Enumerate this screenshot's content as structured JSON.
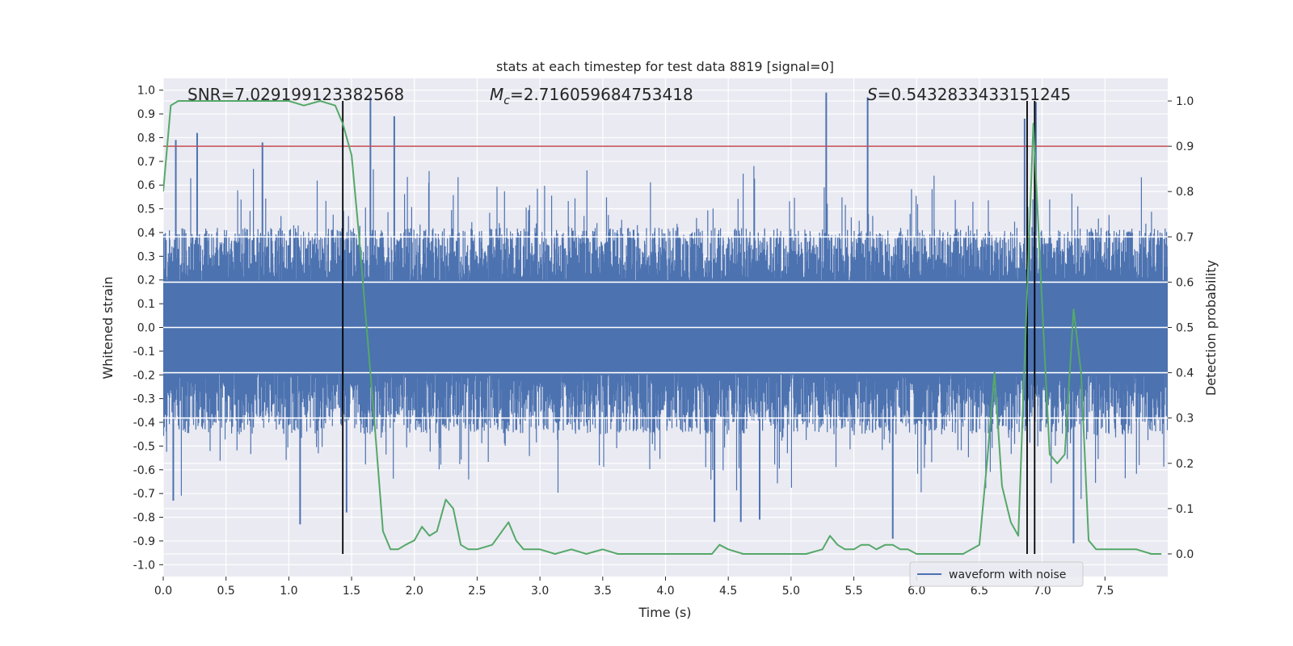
{
  "chart_data": {
    "type": "line",
    "title": "stats at each timestep for test data 8819 [signal=0]",
    "xlabel": "Time (s)",
    "ylabel_left": "Whitened strain",
    "ylabel_right": "Detection probability",
    "xlim": [
      0.0,
      8.0
    ],
    "ylim_left": [
      -1.05,
      1.05
    ],
    "ylim_right": [
      -0.05,
      1.05
    ],
    "grid": true,
    "legend_position": "lower right",
    "x_tick_labels": [
      "0.0",
      "0.5",
      "1.0",
      "1.5",
      "2.0",
      "2.5",
      "3.0",
      "3.5",
      "4.0",
      "4.5",
      "5.0",
      "5.5",
      "6.0",
      "6.5",
      "7.0",
      "7.5"
    ],
    "y_left_tick_labels": [
      "-1.0",
      "-0.9",
      "-0.8",
      "-0.7",
      "-0.6",
      "-0.5",
      "-0.4",
      "-0.3",
      "-0.2",
      "-0.1",
      "0.0",
      "0.1",
      "0.2",
      "0.3",
      "0.4",
      "0.5",
      "0.6",
      "0.7",
      "0.8",
      "0.9",
      "1.0"
    ],
    "y_right_tick_labels": [
      "0.0",
      "0.1",
      "0.2",
      "0.3",
      "0.4",
      "0.5",
      "0.6",
      "0.7",
      "0.8",
      "0.9",
      "1.0"
    ],
    "annotations": {
      "snr": "SNR=7.029199123382568",
      "mc_symbol": "M",
      "mc_subscript": "c",
      "mc_value": "=2.716059684753418",
      "s_symbol": "S",
      "s_value": "=0.5432833433151245"
    },
    "threshold": {
      "value": 0.9,
      "axis": "right",
      "color": "#c44e52"
    },
    "vertical_lines": [
      1.43,
      6.88,
      6.94
    ],
    "series": [
      {
        "name": "waveform with noise",
        "axis": "left",
        "color": "#4c72b0",
        "sampling": "dense noise, approx. 2048 Hz",
        "typical_range": [
          -0.45,
          0.42
        ],
        "peaks": [
          {
            "x": 0.1,
            "y": 0.79
          },
          {
            "x": 0.27,
            "y": 0.82
          },
          {
            "x": 0.79,
            "y": 0.78
          },
          {
            "x": 1.65,
            "y": 0.97
          },
          {
            "x": 1.84,
            "y": 0.89
          },
          {
            "x": 5.28,
            "y": 0.99
          },
          {
            "x": 5.61,
            "y": 0.97
          },
          {
            "x": 6.86,
            "y": 0.88
          },
          {
            "x": 6.95,
            "y": 0.95
          }
        ],
        "troughs": [
          {
            "x": 0.08,
            "y": -0.73
          },
          {
            "x": 1.09,
            "y": -0.83
          },
          {
            "x": 1.46,
            "y": -0.78
          },
          {
            "x": 4.39,
            "y": -0.82
          },
          {
            "x": 4.6,
            "y": -0.82
          },
          {
            "x": 4.75,
            "y": -0.81
          },
          {
            "x": 5.81,
            "y": -0.89
          },
          {
            "x": 7.25,
            "y": -0.91
          }
        ]
      },
      {
        "name": "",
        "axis": "right",
        "color": "#55a868",
        "x": [
          0.0,
          0.06,
          0.12,
          0.25,
          0.5,
          0.75,
          1.0,
          1.12,
          1.25,
          1.37,
          1.43,
          1.5,
          1.56,
          1.62,
          1.68,
          1.75,
          1.81,
          1.87,
          1.93,
          2.0,
          2.06,
          2.12,
          2.18,
          2.25,
          2.31,
          2.37,
          2.43,
          2.5,
          2.62,
          2.75,
          2.81,
          2.87,
          2.93,
          3.0,
          3.12,
          3.25,
          3.37,
          3.5,
          3.62,
          3.75,
          3.87,
          4.0,
          4.12,
          4.25,
          4.37,
          4.43,
          4.5,
          4.62,
          4.75,
          4.87,
          5.0,
          5.12,
          5.25,
          5.31,
          5.37,
          5.43,
          5.5,
          5.56,
          5.62,
          5.68,
          5.75,
          5.81,
          5.87,
          5.93,
          6.0,
          6.12,
          6.25,
          6.37,
          6.5,
          6.56,
          6.62,
          6.68,
          6.75,
          6.81,
          6.87,
          6.93,
          7.0,
          7.06,
          7.12,
          7.18,
          7.25,
          7.31,
          7.37,
          7.43,
          7.5,
          7.62,
          7.75,
          7.87,
          7.95
        ],
        "y": [
          0.8,
          0.99,
          1.0,
          1.0,
          1.0,
          1.0,
          1.0,
          0.99,
          1.0,
          0.99,
          0.95,
          0.88,
          0.7,
          0.5,
          0.3,
          0.05,
          0.01,
          0.01,
          0.02,
          0.03,
          0.06,
          0.04,
          0.05,
          0.12,
          0.1,
          0.02,
          0.01,
          0.01,
          0.02,
          0.07,
          0.03,
          0.01,
          0.01,
          0.01,
          0.0,
          0.01,
          0.0,
          0.01,
          0.0,
          0.0,
          0.0,
          0.0,
          0.0,
          0.0,
          0.0,
          0.02,
          0.01,
          0.0,
          0.0,
          0.0,
          0.0,
          0.0,
          0.01,
          0.04,
          0.02,
          0.01,
          0.01,
          0.02,
          0.02,
          0.01,
          0.02,
          0.02,
          0.01,
          0.01,
          0.0,
          0.0,
          0.0,
          0.0,
          0.02,
          0.2,
          0.4,
          0.15,
          0.07,
          0.04,
          0.5,
          0.95,
          0.55,
          0.22,
          0.2,
          0.22,
          0.54,
          0.4,
          0.03,
          0.01,
          0.01,
          0.01,
          0.01,
          0.0,
          0.0
        ]
      }
    ]
  }
}
